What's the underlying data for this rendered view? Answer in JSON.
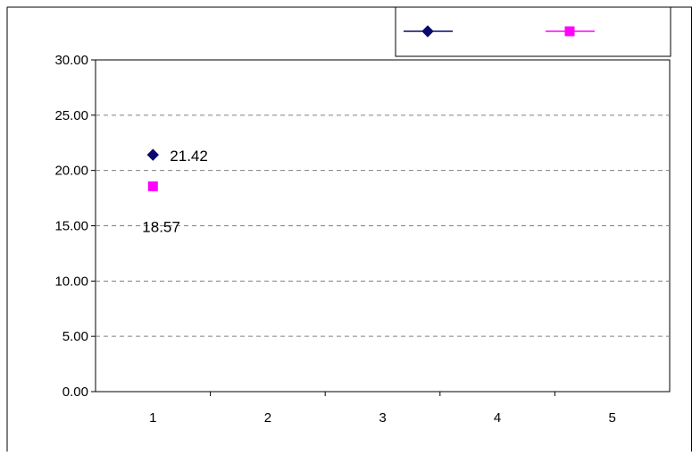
{
  "chart_data": {
    "type": "line",
    "title": "",
    "xlabel": "",
    "ylabel": "",
    "categories": [
      "1",
      "2",
      "3",
      "4",
      "5"
    ],
    "ylim": [
      0,
      30
    ],
    "yticks": [
      "0.00",
      "5.00",
      "10.00",
      "15.00",
      "20.00",
      "25.00",
      "30.00"
    ],
    "grid": true,
    "legend_position": "top-right",
    "series": [
      {
        "values": [
          21.42,
          null,
          null,
          null,
          null
        ],
        "data_labels": [
          "21.42"
        ],
        "marker": "diamond",
        "color": "#0A0A6E"
      },
      {
        "values": [
          18.57,
          null,
          null,
          null,
          null
        ],
        "data_labels": [
          "18.57"
        ],
        "marker": "square",
        "color": "#FF00FF"
      }
    ]
  }
}
